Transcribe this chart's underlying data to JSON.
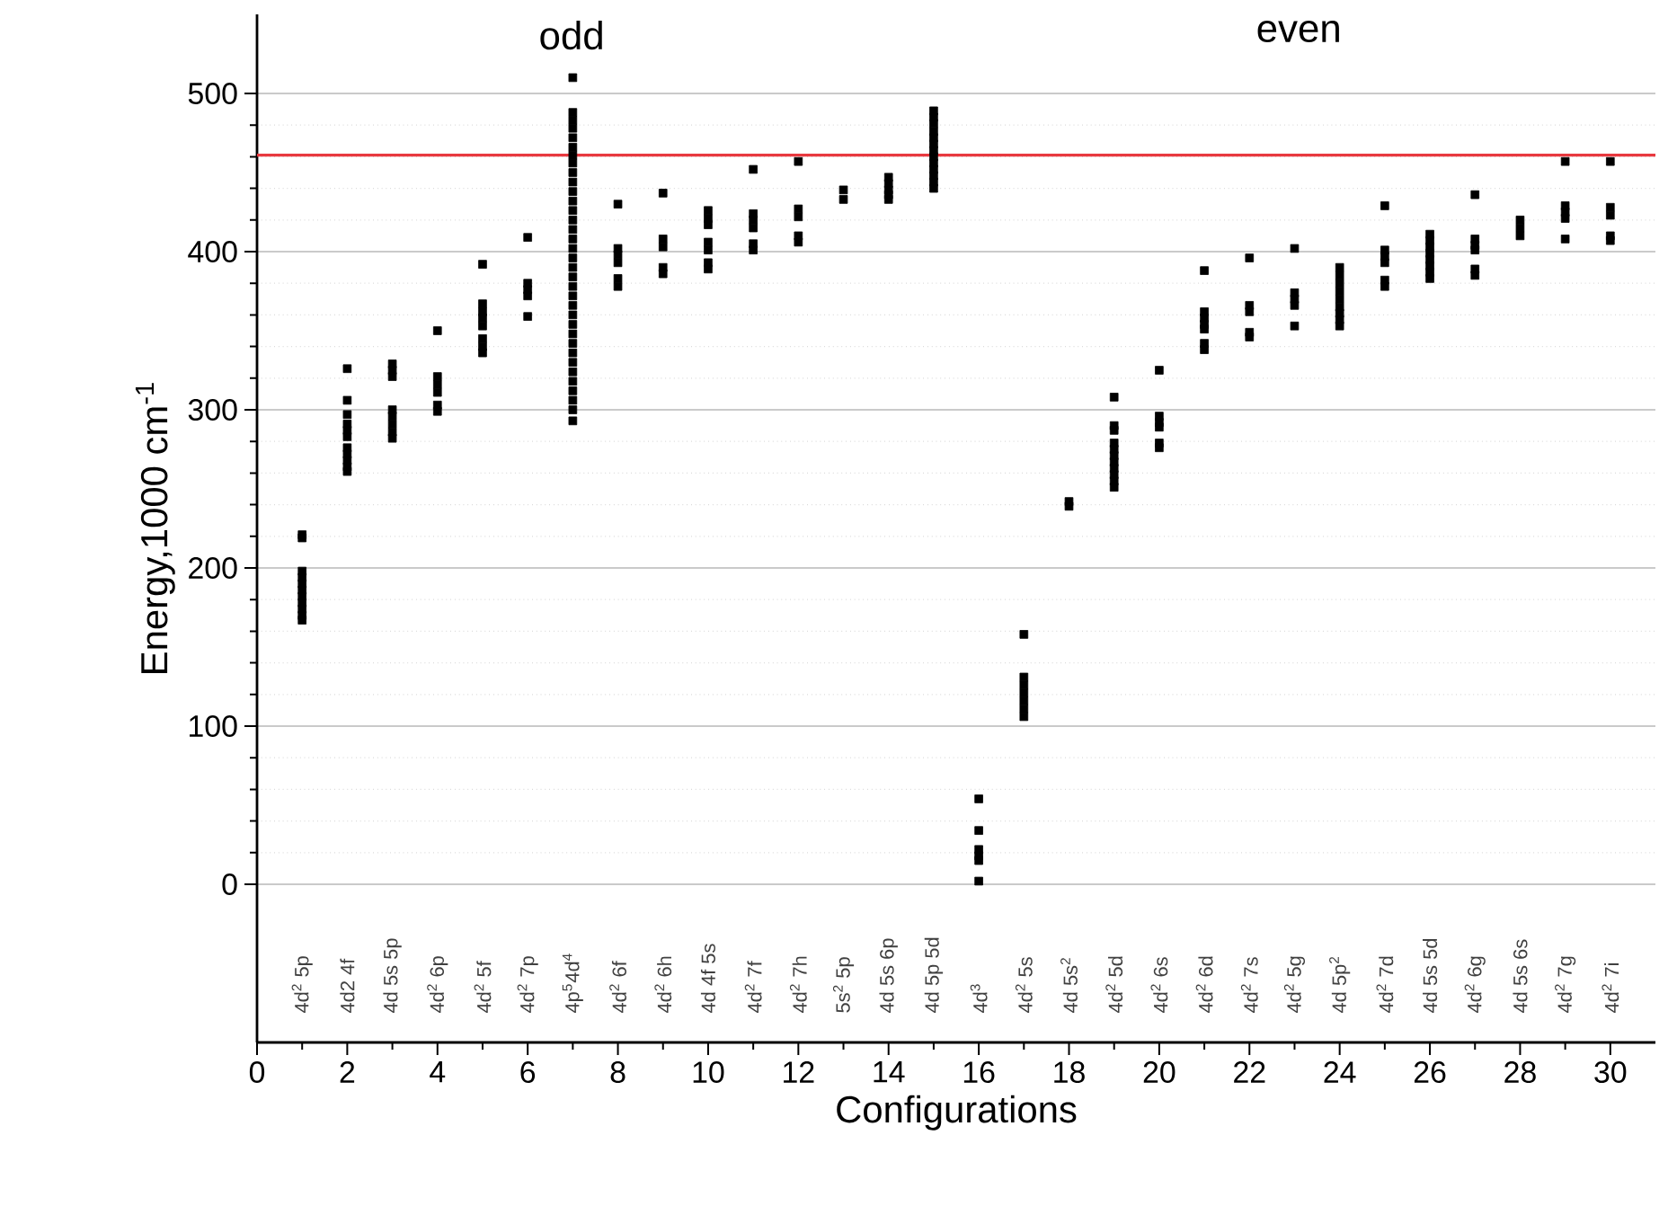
{
  "chart_data": {
    "type": "scatter",
    "xlabel": "Configurations",
    "ylabel": "Energy,1000 cm$^{-1}$",
    "xlim": [
      0,
      31
    ],
    "xticks": [
      0,
      2,
      4,
      6,
      8,
      10,
      12,
      14,
      16,
      18,
      20,
      22,
      24,
      26,
      28,
      30
    ],
    "ylim": [
      -100,
      550
    ],
    "yticks": [
      0,
      100,
      200,
      300,
      400,
      500
    ],
    "grid": "y",
    "marker": "square",
    "ref_lines": [
      {
        "axis": "y",
        "value": 461,
        "color": "#e8393f"
      }
    ],
    "annotations": [
      "odd",
      "even",
      "4d$^{2}$ 5p",
      "4d2 4f",
      "4d 5s 5p",
      "4d$^{2}$ 6p",
      "4d$^{2}$ 5f",
      "4d$^{2}$ 7p",
      "4p$^{5}$4d$^{4}$",
      "4d$^{2}$ 6f",
      "4d$^{2}$ 6h",
      "4d 4f 5s",
      "4d$^{2}$ 7f",
      "4d$^{2}$ 7h",
      "5s$^{2}$ 5p",
      "4d 5s 6p",
      "4d 5p 5d",
      "4d$^{3}$",
      "4d$^{2}$ 5s",
      "4d 5s$^{2}$",
      "4d$^{2}$ 5d",
      "4d$^{2}$ 6s",
      "4d$^{2}$ 6d",
      "4d$^{2}$ 7s",
      "4d$^{2}$ 5g",
      "4d 5p$^{2}$",
      "4d$^{2}$ 7d",
      "4d 5s 5d",
      "4d$^{2}$ 6g",
      "4d 5s 6s",
      "4d$^{2}$ 7g",
      "4d$^{2}$ 7i"
    ],
    "series": [
      {
        "color": "#000000",
        "x": [
          1,
          1,
          1,
          1,
          1,
          1,
          1,
          1,
          1,
          1,
          1,
          2,
          2,
          2,
          2,
          2,
          2,
          2,
          2,
          2,
          2,
          2,
          3,
          3,
          3,
          3,
          3,
          3,
          3,
          3,
          4,
          4,
          4,
          4,
          4,
          4,
          5,
          5,
          5,
          5,
          5,
          5,
          5,
          5,
          6,
          6,
          6,
          6,
          6,
          7,
          7,
          7,
          7,
          7,
          7,
          7,
          7,
          7,
          7,
          7,
          7,
          7,
          7,
          7,
          7,
          7,
          7,
          7,
          7,
          7,
          7,
          7,
          7,
          7,
          7,
          7,
          7,
          7,
          7,
          7,
          7,
          7,
          7,
          7,
          8,
          8,
          8,
          8,
          8,
          8,
          9,
          9,
          9,
          9,
          9,
          10,
          10,
          10,
          10,
          10,
          10,
          10,
          11,
          11,
          11,
          11,
          11,
          11,
          12,
          12,
          12,
          12,
          12,
          13,
          13,
          14,
          14,
          14,
          14,
          14,
          15,
          15,
          15,
          15,
          15,
          15,
          15,
          15,
          15,
          15,
          15,
          15,
          15,
          16,
          16,
          16,
          16,
          16,
          16,
          17,
          17,
          17,
          17,
          17,
          17,
          17,
          18,
          18,
          19,
          19,
          19,
          19,
          19,
          19,
          19,
          19,
          19,
          19,
          19,
          20,
          20,
          20,
          20,
          20,
          20,
          21,
          21,
          21,
          21,
          21,
          21,
          21,
          22,
          22,
          22,
          22,
          22,
          23,
          23,
          23,
          23,
          23,
          24,
          24,
          24,
          24,
          24,
          24,
          24,
          24,
          24,
          25,
          25,
          25,
          25,
          25,
          25,
          26,
          26,
          26,
          26,
          26,
          26,
          26,
          26,
          27,
          27,
          27,
          27,
          27,
          27,
          28,
          28,
          28,
          29,
          29,
          29,
          29,
          29,
          30,
          30,
          30,
          30,
          30
        ],
        "values": [
          221,
          219,
          198,
          194,
          190,
          186,
          182,
          178,
          174,
          170,
          167,
          326,
          306,
          297,
          291,
          287,
          283,
          276,
          272,
          268,
          264,
          261,
          329,
          325,
          321,
          300,
          296,
          291,
          286,
          282,
          350,
          321,
          316,
          311,
          303,
          299,
          392,
          367,
          362,
          358,
          353,
          345,
          340,
          336,
          409,
          380,
          376,
          372,
          359,
          510,
          488,
          483,
          478,
          472,
          466,
          461,
          456,
          450,
          444,
          438,
          432,
          426,
          420,
          414,
          408,
          402,
          396,
          390,
          384,
          378,
          372,
          366,
          360,
          354,
          348,
          342,
          336,
          330,
          324,
          318,
          312,
          306,
          300,
          293,
          430,
          402,
          398,
          393,
          383,
          378,
          437,
          408,
          403,
          390,
          386,
          426,
          421,
          417,
          406,
          401,
          393,
          389,
          452,
          424,
          420,
          415,
          405,
          401,
          457,
          427,
          422,
          410,
          406,
          439,
          433,
          447,
          443,
          439,
          436,
          433,
          489,
          485,
          481,
          476,
          472,
          468,
          464,
          460,
          456,
          452,
          448,
          444,
          440,
          54,
          34,
          22,
          18,
          15,
          2,
          158,
          131,
          126,
          121,
          116,
          111,
          106,
          242,
          239,
          308,
          290,
          287,
          279,
          275,
          271,
          267,
          263,
          259,
          255,
          251,
          325,
          296,
          292,
          289,
          279,
          276,
          388,
          362,
          358,
          354,
          351,
          342,
          338,
          396,
          366,
          362,
          349,
          346,
          402,
          374,
          370,
          366,
          353,
          390,
          385,
          380,
          375,
          370,
          365,
          361,
          357,
          353,
          429,
          401,
          397,
          393,
          382,
          378,
          411,
          407,
          403,
          399,
          395,
          391,
          387,
          383,
          436,
          408,
          404,
          401,
          389,
          385,
          420,
          415,
          410,
          457,
          429,
          425,
          421,
          408,
          457,
          428,
          423,
          410,
          407
        ]
      }
    ]
  }
}
